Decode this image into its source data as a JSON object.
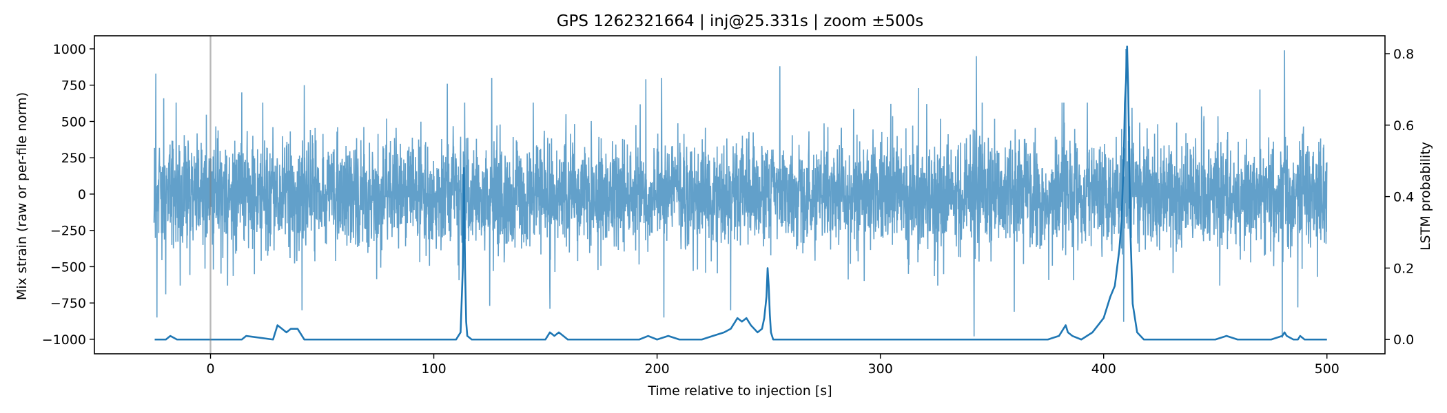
{
  "chart_data": {
    "type": "line",
    "title": "GPS 1262321664 | inj@25.331s | zoom ±500s",
    "xlabel": "Time relative to injection [s]",
    "ylabel_left": "Mix strain (raw or per-file norm)",
    "ylabel_right": "LSTM probability",
    "xlim": [
      -52,
      526
    ],
    "ylim_left": [
      -1100,
      1090
    ],
    "ylim_right": [
      -0.04,
      0.85
    ],
    "x_ticks": [
      0,
      100,
      200,
      300,
      400,
      500
    ],
    "x_tick_labels": [
      "0",
      "100",
      "200",
      "300",
      "400",
      "500"
    ],
    "y_left_ticks": [
      1000,
      750,
      500,
      250,
      0,
      -250,
      -500,
      -750,
      -1000
    ],
    "y_left_tick_labels": [
      "1000",
      "750",
      "500",
      "250",
      "0",
      "−250",
      "−500",
      "−750",
      "−1000"
    ],
    "y_right_ticks": [
      0.8,
      0.6,
      0.4,
      0.2,
      0.0
    ],
    "y_right_tick_labels": [
      "0.8",
      "0.6",
      "0.4",
      "0.2",
      "0.0"
    ],
    "injection_marker_x": 0,
    "grid": false,
    "strain_series": {
      "color": "#1f77b4",
      "opacity": 0.7,
      "x_range": [
        -25.3,
        500
      ],
      "typical_amplitude": 300,
      "typical_peak": 600,
      "spikes": [
        {
          "x": -24.5,
          "y": 830
        },
        {
          "x": -24,
          "y": -850
        },
        {
          "x": -21,
          "y": 660
        },
        {
          "x": -20,
          "y": -690
        },
        {
          "x": 14,
          "y": 700
        },
        {
          "x": 42,
          "y": 750
        },
        {
          "x": 41,
          "y": -800
        },
        {
          "x": 106,
          "y": 760
        },
        {
          "x": 126,
          "y": 800
        },
        {
          "x": 125,
          "y": -770
        },
        {
          "x": 152,
          "y": -790
        },
        {
          "x": 195,
          "y": 790
        },
        {
          "x": 202,
          "y": 800
        },
        {
          "x": 203,
          "y": -850
        },
        {
          "x": 233,
          "y": -800
        },
        {
          "x": 255,
          "y": 880
        },
        {
          "x": 317,
          "y": 730
        },
        {
          "x": 343,
          "y": 950
        },
        {
          "x": 342,
          "y": -980
        },
        {
          "x": 360,
          "y": -810
        },
        {
          "x": 410,
          "y": 1000
        },
        {
          "x": 409,
          "y": -880
        },
        {
          "x": 481,
          "y": 990
        },
        {
          "x": 480,
          "y": -990
        },
        {
          "x": 470,
          "y": 720
        },
        {
          "x": 487,
          "y": -780
        }
      ]
    },
    "lstm_series": {
      "color": "#1f77b4",
      "baseline": 0.0,
      "x": [
        -25,
        -20,
        -18,
        -15,
        14,
        16,
        28,
        29,
        30,
        32,
        34,
        36,
        38,
        39,
        40,
        42,
        100,
        110,
        112,
        113,
        113.5,
        114,
        114.5,
        115,
        117,
        120,
        150,
        152,
        154,
        156,
        158,
        160,
        192,
        196,
        200,
        205,
        210,
        220,
        225,
        230,
        233,
        235,
        236,
        238,
        240,
        242,
        245,
        247,
        248,
        249,
        249.5,
        250,
        250.5,
        251,
        252,
        254,
        258,
        375,
        380,
        382,
        383,
        384,
        386,
        390,
        395,
        400,
        403,
        405,
        406,
        407,
        408,
        408.5,
        409,
        409.5,
        410,
        410.5,
        411,
        411.5,
        412,
        413,
        415,
        418,
        450,
        455,
        460,
        475,
        480,
        481,
        482,
        485,
        487,
        488,
        490,
        495,
        500
      ],
      "y": [
        0.0,
        0.0,
        0.01,
        0.0,
        0.0,
        0.01,
        0.0,
        0.02,
        0.04,
        0.03,
        0.02,
        0.03,
        0.03,
        0.03,
        0.02,
        0.0,
        0.0,
        0.0,
        0.02,
        0.2,
        0.48,
        0.2,
        0.05,
        0.01,
        0.0,
        0.0,
        0.0,
        0.02,
        0.01,
        0.02,
        0.01,
        0.0,
        0.0,
        0.01,
        0.0,
        0.01,
        0.0,
        0.0,
        0.01,
        0.02,
        0.03,
        0.05,
        0.06,
        0.05,
        0.06,
        0.04,
        0.02,
        0.03,
        0.06,
        0.12,
        0.2,
        0.15,
        0.07,
        0.02,
        0.0,
        0.0,
        0.0,
        0.0,
        0.01,
        0.03,
        0.04,
        0.02,
        0.01,
        0.0,
        0.02,
        0.06,
        0.12,
        0.15,
        0.2,
        0.25,
        0.33,
        0.42,
        0.5,
        0.66,
        0.72,
        0.82,
        0.7,
        0.5,
        0.3,
        0.1,
        0.02,
        0.0,
        0.0,
        0.01,
        0.0,
        0.0,
        0.01,
        0.02,
        0.01,
        0.0,
        0.0,
        0.01,
        0.0,
        0.0,
        0.0
      ]
    }
  }
}
